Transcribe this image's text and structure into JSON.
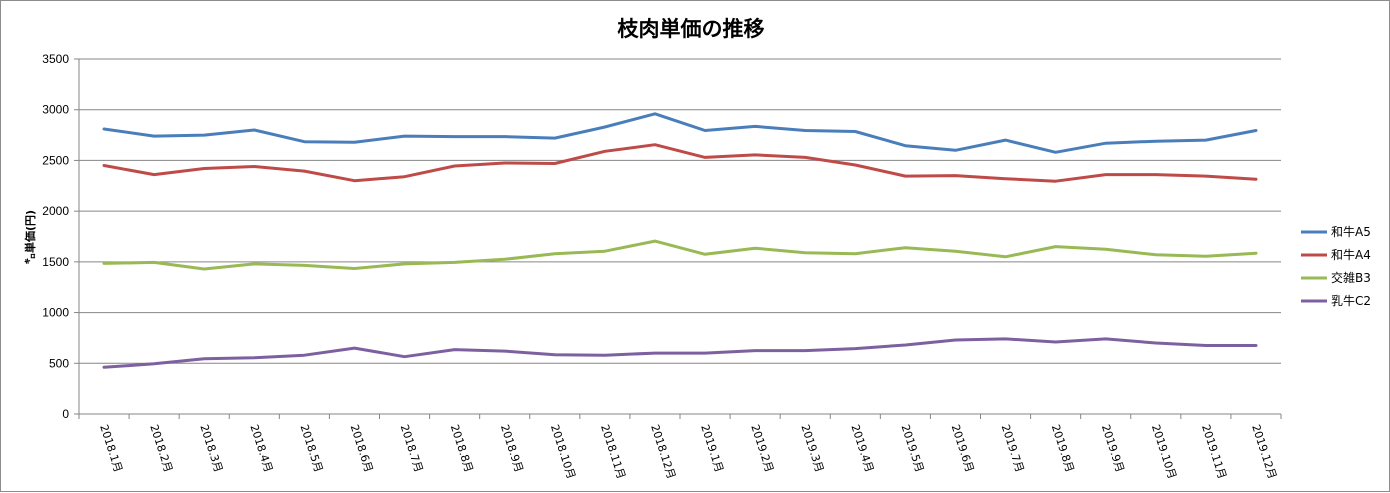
{
  "chart_data": {
    "type": "line",
    "title": "枝肉単価の推移",
    "ylabel": "㌔単価(円)",
    "xlabel": "",
    "ylim": [
      0,
      3500
    ],
    "yticks": [
      0,
      500,
      1000,
      1500,
      2000,
      2500,
      3000,
      3500
    ],
    "grid": true,
    "legend_position": "right",
    "categories": [
      "2018.1月",
      "2018.2月",
      "2018.3月",
      "2018.4月",
      "2018.5月",
      "2018.6月",
      "2018.7月",
      "2018.8月",
      "2018.9月",
      "2018.10月",
      "2018.11月",
      "2018.12月",
      "2019.1月",
      "2019.2月",
      "2019.3月",
      "2019.4月",
      "2019.5月",
      "2019.6月",
      "2019.7月",
      "2019.8月",
      "2019.9月",
      "2019.10月",
      "2019.11月",
      "2019.12月"
    ],
    "series": [
      {
        "name": "和牛A5",
        "color": "#4a7ebb",
        "values": [
          2810,
          2740,
          2750,
          2800,
          2685,
          2680,
          2740,
          2735,
          2735,
          2720,
          2830,
          2960,
          2795,
          2835,
          2795,
          2785,
          2645,
          2600,
          2700,
          2580,
          2670,
          2690,
          2700,
          2795
        ]
      },
      {
        "name": "和牛A4",
        "color": "#be4b48",
        "values": [
          2450,
          2360,
          2420,
          2440,
          2395,
          2300,
          2340,
          2445,
          2475,
          2470,
          2590,
          2655,
          2530,
          2555,
          2530,
          2455,
          2345,
          2350,
          2320,
          2295,
          2360,
          2360,
          2345,
          2315
        ]
      },
      {
        "name": "交雑B3",
        "color": "#98b954",
        "values": [
          1485,
          1495,
          1430,
          1480,
          1465,
          1435,
          1480,
          1495,
          1525,
          1580,
          1605,
          1705,
          1575,
          1635,
          1590,
          1580,
          1640,
          1605,
          1550,
          1650,
          1625,
          1570,
          1555,
          1585
        ]
      },
      {
        "name": "乳牛C2",
        "color": "#7d60a0",
        "values": [
          460,
          495,
          545,
          555,
          580,
          650,
          565,
          635,
          620,
          585,
          580,
          600,
          600,
          625,
          625,
          645,
          680,
          730,
          740,
          710,
          740,
          700,
          675,
          675
        ]
      }
    ]
  }
}
